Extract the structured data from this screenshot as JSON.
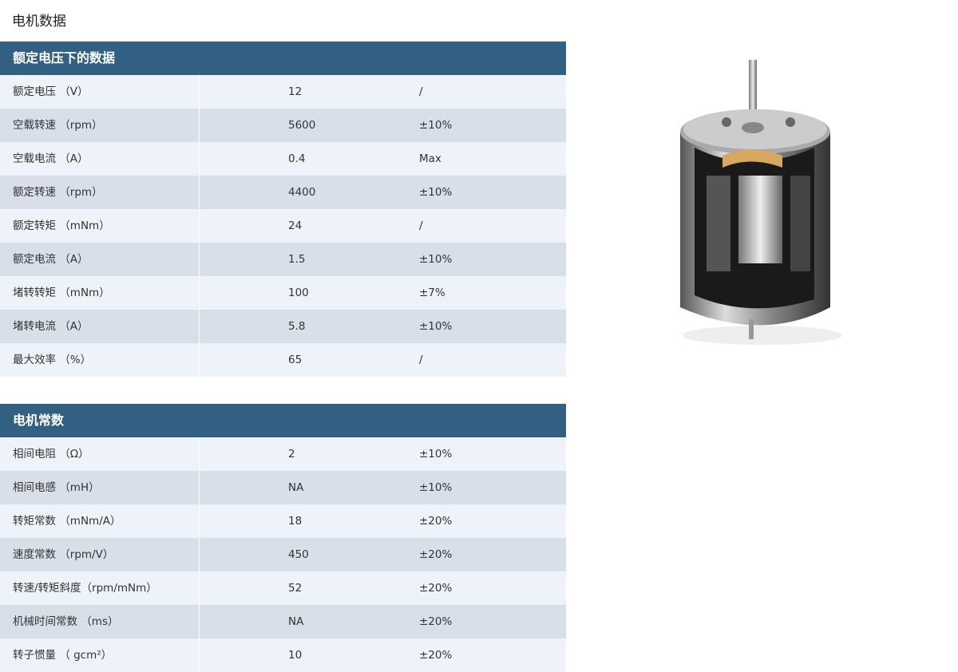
{
  "title": "电机数据",
  "tables": [
    {
      "header": "额定电压下的数据",
      "rows": [
        [
          "额定电压 （V）",
          "12",
          "/"
        ],
        [
          "空载转速 （rpm）",
          "5600",
          "±10%"
        ],
        [
          "空载电流 （A）",
          "0.4",
          "Max"
        ],
        [
          "额定转速 （rpm）",
          "4400",
          "±10%"
        ],
        [
          "额定转矩 （mNm）",
          "24",
          "/"
        ],
        [
          "额定电流 （A）",
          "1.5",
          "±10%"
        ],
        [
          "堵转转矩 （mNm）",
          "100",
          "±7%"
        ],
        [
          "堵转电流 （A）",
          "5.8",
          "±10%"
        ],
        [
          "最大效率 （%）",
          "65",
          "/"
        ]
      ]
    },
    {
      "header": "电机常数",
      "rows": [
        [
          "相间电阻 （Ω）",
          "2",
          "±10%"
        ],
        [
          "相间电感 （mH）",
          "NA",
          "±10%"
        ],
        [
          "转矩常数 （mNm/A）",
          "18",
          "±20%"
        ],
        [
          "速度常数 （rpm/V）",
          "450",
          "±20%"
        ],
        [
          "转速/转矩斜度（rpm/mNm）",
          "52",
          "±20%"
        ],
        [
          "机械时间常数 （ms）",
          "NA",
          "±20%"
        ],
        [
          "转子惯量 （ gcm²）",
          "10",
          "±20%"
        ]
      ]
    }
  ],
  "image": {
    "subject": "motor-cutaway-image"
  }
}
